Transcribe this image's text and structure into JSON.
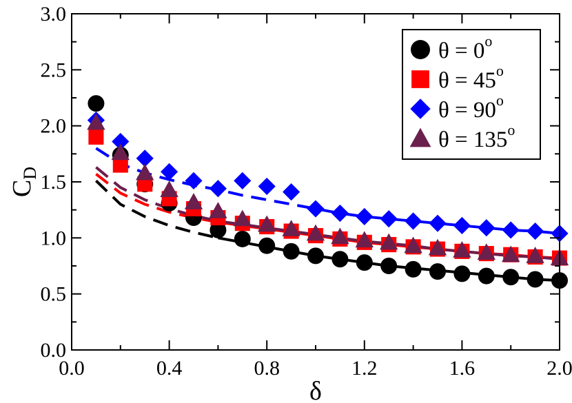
{
  "chart_data": {
    "type": "scatter",
    "xlabel": "δ",
    "ylabel_main": "C",
    "ylabel_sub": "D",
    "xlim": [
      0.0,
      2.0
    ],
    "ylim": [
      0.0,
      3.0
    ],
    "x_ticks": [
      0.0,
      0.4,
      0.8,
      1.2,
      1.6,
      2.0
    ],
    "x_tick_labels": [
      "0.0",
      "0.4",
      "0.8",
      "1.2",
      "1.6",
      "2.0"
    ],
    "y_ticks": [
      0.0,
      0.5,
      1.0,
      1.5,
      2.0,
      2.5,
      3.0
    ],
    "y_tick_labels": [
      "0.0",
      "0.5",
      "1.0",
      "1.5",
      "2.0",
      "2.5",
      "3.0"
    ],
    "legend_position": "top-right",
    "series": [
      {
        "name": "θ = 0",
        "label_main": "θ = 0",
        "label_sup": "o",
        "marker": "circle",
        "color": "#000000",
        "x": [
          0.1,
          0.2,
          0.3,
          0.4,
          0.5,
          0.6,
          0.7,
          0.8,
          0.9,
          1.0,
          1.1,
          1.2,
          1.3,
          1.4,
          1.5,
          1.6,
          1.7,
          1.8,
          1.9,
          2.0
        ],
        "values": [
          2.2,
          1.74,
          1.48,
          1.31,
          1.18,
          1.07,
          0.99,
          0.93,
          0.88,
          0.84,
          0.81,
          0.78,
          0.75,
          0.72,
          0.7,
          0.68,
          0.66,
          0.65,
          0.63,
          0.62
        ],
        "fit": [
          1.51,
          1.3,
          1.19,
          1.11,
          1.05,
          1.0,
          0.96,
          0.92,
          0.88,
          0.84,
          0.81,
          0.78,
          0.75,
          0.73,
          0.71,
          0.69,
          0.67,
          0.65,
          0.63,
          0.62
        ]
      },
      {
        "name": "θ = 45",
        "label_main": "θ = 45",
        "label_sup": "o",
        "marker": "square",
        "color": "#ff0000",
        "x": [
          0.1,
          0.2,
          0.3,
          0.4,
          0.5,
          0.6,
          0.7,
          0.8,
          0.9,
          1.0,
          1.1,
          1.2,
          1.3,
          1.4,
          1.5,
          1.6,
          1.7,
          1.8,
          1.9,
          2.0
        ],
        "values": [
          1.9,
          1.65,
          1.48,
          1.35,
          1.26,
          1.18,
          1.13,
          1.1,
          1.06,
          1.02,
          0.99,
          0.96,
          0.94,
          0.92,
          0.9,
          0.88,
          0.86,
          0.85,
          0.83,
          0.82
        ],
        "fit": [
          1.57,
          1.4,
          1.3,
          1.23,
          1.18,
          1.14,
          1.11,
          1.08,
          1.05,
          1.02,
          0.99,
          0.96,
          0.94,
          0.92,
          0.9,
          0.88,
          0.86,
          0.85,
          0.83,
          0.82
        ]
      },
      {
        "name": "θ = 90",
        "label_main": "θ = 90",
        "label_sup": "o",
        "marker": "diamond",
        "color": "#0000ff",
        "x": [
          0.1,
          0.2,
          0.3,
          0.4,
          0.5,
          0.6,
          0.7,
          0.8,
          0.9,
          1.0,
          1.1,
          1.2,
          1.3,
          1.4,
          1.5,
          1.6,
          1.7,
          1.8,
          1.9,
          2.0
        ],
        "values": [
          2.05,
          1.86,
          1.71,
          1.59,
          1.51,
          1.44,
          1.51,
          1.46,
          1.41,
          1.26,
          1.22,
          1.19,
          1.17,
          1.15,
          1.13,
          1.11,
          1.09,
          1.07,
          1.06,
          1.04
        ],
        "fit": [
          1.8,
          1.66,
          1.58,
          1.52,
          1.47,
          1.43,
          1.38,
          1.34,
          1.3,
          1.26,
          1.22,
          1.19,
          1.17,
          1.15,
          1.13,
          1.11,
          1.09,
          1.07,
          1.06,
          1.04
        ]
      },
      {
        "name": "θ = 135",
        "label_main": "θ = 135",
        "label_sup": "o",
        "marker": "triangle",
        "color": "#6b1f4d",
        "x": [
          0.1,
          0.2,
          0.3,
          0.4,
          0.5,
          0.6,
          0.7,
          0.8,
          0.9,
          1.0,
          1.1,
          1.2,
          1.3,
          1.4,
          1.5,
          1.6,
          1.7,
          1.8,
          1.9,
          2.0
        ],
        "values": [
          2.03,
          1.76,
          1.58,
          1.43,
          1.32,
          1.24,
          1.17,
          1.12,
          1.08,
          1.04,
          1.01,
          0.98,
          0.96,
          0.93,
          0.91,
          0.89,
          0.87,
          0.85,
          0.84,
          0.82
        ],
        "fit": [
          1.63,
          1.45,
          1.34,
          1.26,
          1.2,
          1.15,
          1.12,
          1.09,
          1.06,
          1.03,
          1.0,
          0.97,
          0.95,
          0.93,
          0.9,
          0.88,
          0.86,
          0.84,
          0.83,
          0.81
        ]
      }
    ]
  }
}
